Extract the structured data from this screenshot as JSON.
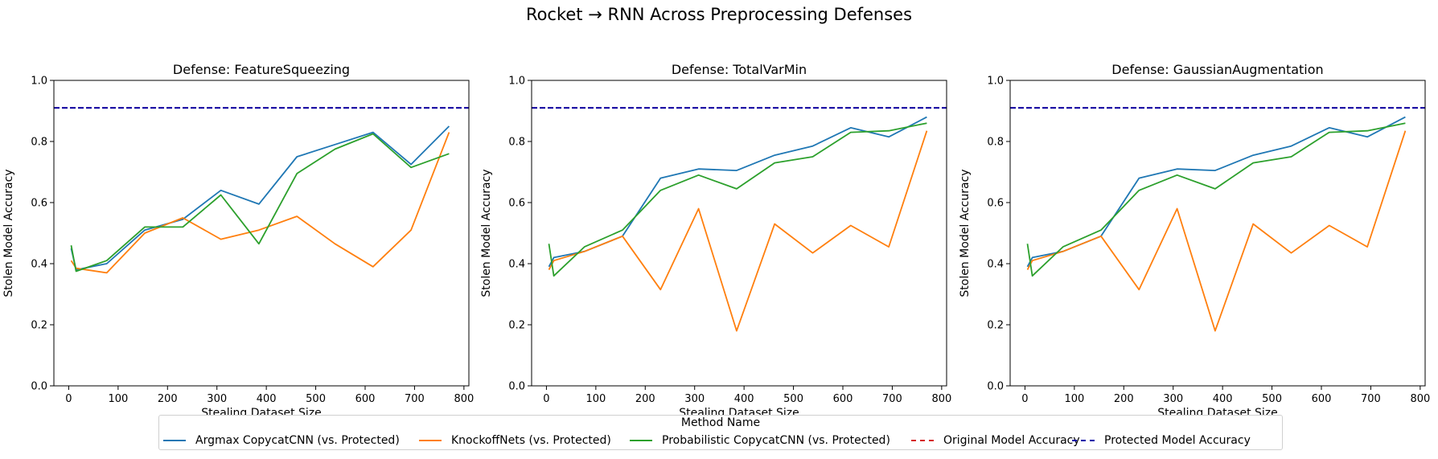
{
  "figure": {
    "suptitle": "Rocket → RNN Across Preprocessing Defenses"
  },
  "legend": {
    "title": "Method Name",
    "items": [
      {
        "label": "Argmax CopycatCNN (vs. Protected)",
        "color": "#1f77b4",
        "style": "solid"
      },
      {
        "label": "KnockoffNets (vs. Protected)",
        "color": "#ff7f0e",
        "style": "solid"
      },
      {
        "label": "Probabilistic CopycatCNN (vs. Protected)",
        "color": "#2ca02c",
        "style": "solid"
      },
      {
        "label": "Original Model Accuracy",
        "color": "#d62728",
        "style": "dashed"
      },
      {
        "label": "Protected Model Accuracy",
        "color": "#0000aa",
        "style": "dashed"
      }
    ]
  },
  "chart_data": [
    {
      "type": "line",
      "title": "Defense: FeatureSqueezing",
      "xlabel": "Stealing Dataset Size",
      "ylabel": "Stolen Model Accuracy",
      "xlim": [
        -30,
        810
      ],
      "ylim": [
        0,
        1.0
      ],
      "xticks": [
        0,
        100,
        200,
        300,
        400,
        500,
        600,
        700,
        800
      ],
      "yticks": [
        0.0,
        0.2,
        0.4,
        0.6,
        0.8,
        1.0
      ],
      "x": [
        5,
        15,
        77,
        154,
        231,
        308,
        385,
        462,
        539,
        616,
        693,
        770
      ],
      "series": [
        {
          "name": "Argmax CopycatCNN (vs. Protected)",
          "values": [
            0.45,
            0.38,
            0.4,
            0.51,
            0.545,
            0.64,
            0.595,
            0.75,
            0.79,
            0.83,
            0.725,
            0.85
          ]
        },
        {
          "name": "KnockoffNets (vs. Protected)",
          "values": [
            0.41,
            0.385,
            0.37,
            0.5,
            0.55,
            0.48,
            0.51,
            0.555,
            0.465,
            0.39,
            0.51,
            0.83
          ]
        },
        {
          "name": "Probabilistic CopycatCNN (vs. Protected)",
          "values": [
            0.46,
            0.375,
            0.41,
            0.52,
            0.52,
            0.625,
            0.465,
            0.695,
            0.775,
            0.825,
            0.715,
            0.76
          ]
        }
      ],
      "hlines": [
        {
          "name": "Original Model Accuracy",
          "value": 0.91
        },
        {
          "name": "Protected Model Accuracy",
          "value": 0.91
        }
      ]
    },
    {
      "type": "line",
      "title": "Defense: TotalVarMin",
      "xlabel": "Stealing Dataset Size",
      "ylabel": "Stolen Model Accuracy",
      "xlim": [
        -30,
        810
      ],
      "ylim": [
        0,
        1.0
      ],
      "xticks": [
        0,
        100,
        200,
        300,
        400,
        500,
        600,
        700,
        800
      ],
      "yticks": [
        0.0,
        0.2,
        0.4,
        0.6,
        0.8,
        1.0
      ],
      "x": [
        5,
        15,
        77,
        154,
        231,
        308,
        385,
        462,
        539,
        616,
        693,
        770
      ],
      "series": [
        {
          "name": "Argmax CopycatCNN (vs. Protected)",
          "values": [
            0.39,
            0.42,
            0.44,
            0.49,
            0.68,
            0.71,
            0.705,
            0.755,
            0.785,
            0.845,
            0.815,
            0.88
          ]
        },
        {
          "name": "KnockoffNets (vs. Protected)",
          "values": [
            0.38,
            0.41,
            0.44,
            0.49,
            0.315,
            0.58,
            0.18,
            0.53,
            0.435,
            0.525,
            0.455,
            0.835
          ]
        },
        {
          "name": "Probabilistic CopycatCNN (vs. Protected)",
          "values": [
            0.465,
            0.36,
            0.455,
            0.51,
            0.64,
            0.69,
            0.645,
            0.73,
            0.75,
            0.83,
            0.835,
            0.86
          ]
        }
      ],
      "hlines": [
        {
          "name": "Original Model Accuracy",
          "value": 0.91
        },
        {
          "name": "Protected Model Accuracy",
          "value": 0.91
        }
      ]
    },
    {
      "type": "line",
      "title": "Defense: GaussianAugmentation",
      "xlabel": "Stealing Dataset Size",
      "ylabel": "Stolen Model Accuracy",
      "xlim": [
        -30,
        810
      ],
      "ylim": [
        0,
        1.0
      ],
      "xticks": [
        0,
        100,
        200,
        300,
        400,
        500,
        600,
        700,
        800
      ],
      "yticks": [
        0.0,
        0.2,
        0.4,
        0.6,
        0.8,
        1.0
      ],
      "x": [
        5,
        15,
        77,
        154,
        231,
        308,
        385,
        462,
        539,
        616,
        693,
        770
      ],
      "series": [
        {
          "name": "Argmax CopycatCNN (vs. Protected)",
          "values": [
            0.39,
            0.42,
            0.44,
            0.49,
            0.68,
            0.71,
            0.705,
            0.755,
            0.785,
            0.845,
            0.815,
            0.88
          ]
        },
        {
          "name": "KnockoffNets (vs. Protected)",
          "values": [
            0.38,
            0.41,
            0.44,
            0.49,
            0.315,
            0.58,
            0.18,
            0.53,
            0.435,
            0.525,
            0.455,
            0.835
          ]
        },
        {
          "name": "Probabilistic CopycatCNN (vs. Protected)",
          "values": [
            0.465,
            0.36,
            0.455,
            0.51,
            0.64,
            0.69,
            0.645,
            0.73,
            0.75,
            0.83,
            0.835,
            0.86
          ]
        }
      ],
      "hlines": [
        {
          "name": "Original Model Accuracy",
          "value": 0.91
        },
        {
          "name": "Protected Model Accuracy",
          "value": 0.91
        }
      ]
    }
  ]
}
